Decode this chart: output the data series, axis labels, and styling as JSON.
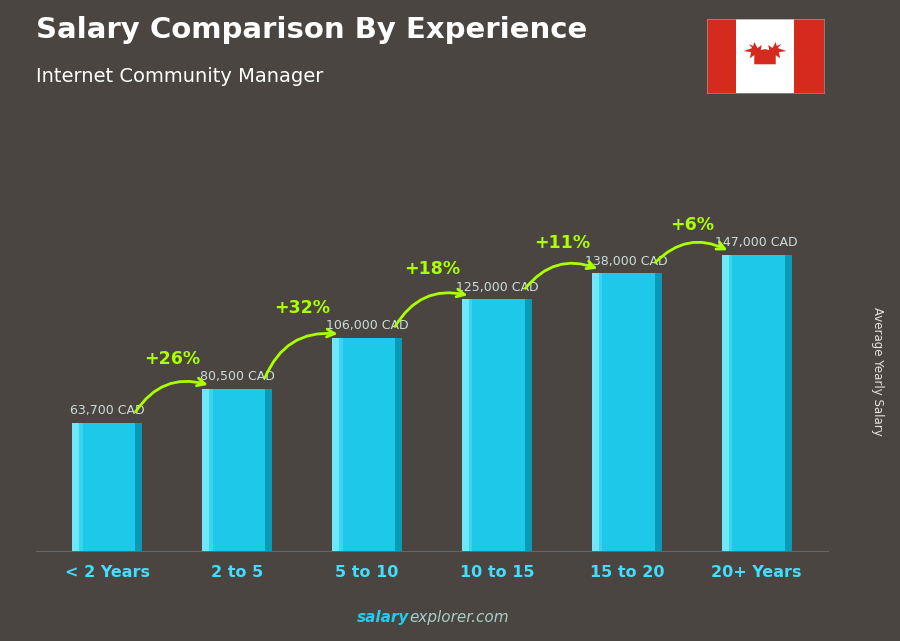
{
  "title": "Salary Comparison By Experience",
  "subtitle": "Internet Community Manager",
  "categories": [
    "< 2 Years",
    "2 to 5",
    "5 to 10",
    "10 to 15",
    "15 to 20",
    "20+ Years"
  ],
  "values": [
    63700,
    80500,
    106000,
    125000,
    138000,
    147000
  ],
  "value_labels": [
    "63,700 CAD",
    "80,500 CAD",
    "106,000 CAD",
    "125,000 CAD",
    "138,000 CAD",
    "147,000 CAD"
  ],
  "pct_labels": [
    "+26%",
    "+32%",
    "+18%",
    "+11%",
    "+6%"
  ],
  "bar_color_main": "#1ec8e8",
  "bar_color_light": "#6ee8f8",
  "bar_color_dark": "#0a9ab8",
  "bg_color": "#4a4540",
  "title_color": "#ffffff",
  "subtitle_color": "#ffffff",
  "value_label_color": "#ccdddd",
  "pct_color": "#aaff00",
  "xtick_color": "#44ddff",
  "ylabel_text": "Average Yearly Salary",
  "watermark_bold": "salary",
  "watermark_reg": "explorer.com",
  "watermark_color": "#22ccee",
  "ylim_max": 175000,
  "bar_width": 0.54,
  "flag_red": "#d52b1e",
  "flag_white": "#ffffff"
}
